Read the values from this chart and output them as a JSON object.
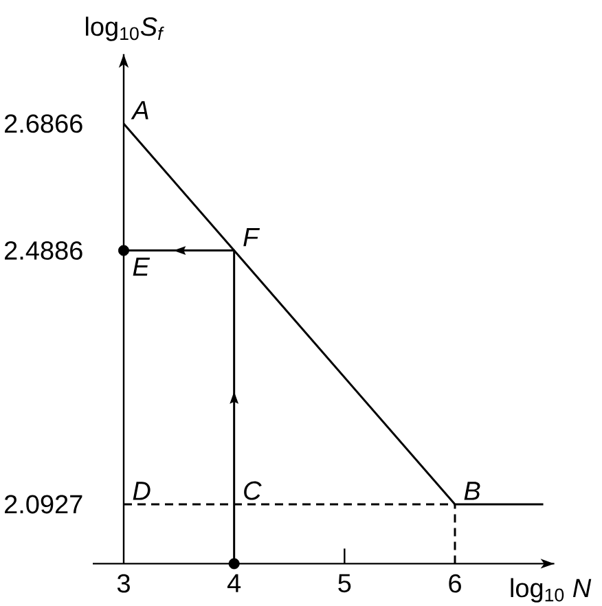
{
  "chart_data": {
    "type": "line",
    "xlabel": "log$_{10}$ *N*",
    "ylabel": "log$_{10}$*S$_{f}$*",
    "x": [
      3,
      4,
      6,
      6.8
    ],
    "xlim": [
      3,
      6.9
    ],
    "ylim": [
      2.0,
      2.795
    ],
    "xticks": [
      3,
      4,
      5,
      6
    ],
    "yticks": [
      2.0927,
      2.4886,
      2.6866
    ],
    "series": [
      {
        "color": "#000000",
        "values": [
          2.6866,
          2.4886,
          2.0927,
          2.0927
        ]
      },
      {
        "color": "#000000",
        "x": [
          3,
          6
        ],
        "values": [
          2.0927,
          2.0927
        ],
        "line_style": "dashed"
      },
      {
        "color": "#000000",
        "x": [
          6,
          6
        ],
        "values": [
          2.0,
          2.0927
        ],
        "line_style": "dashed"
      },
      {
        "color": "#000000",
        "x": [
          4,
          4,
          3
        ],
        "values": [
          2.0,
          2.4886,
          2.4886
        ]
      },
      {
        "type": "scatter",
        "color": "#000000",
        "x": [
          4,
          3
        ],
        "values": [
          2.0,
          2.4886
        ],
        "marker": "circle"
      }
    ],
    "annotations": [
      {
        "text": "A",
        "x": 3,
        "y": 2.6866
      },
      {
        "text": "F",
        "x": 4,
        "y": 2.4886
      },
      {
        "text": "E",
        "x": 3,
        "y": 2.4886
      },
      {
        "text": "D",
        "x": 3,
        "y": 2.0927
      },
      {
        "text": "C",
        "x": 4,
        "y": 2.0927
      },
      {
        "text": "B",
        "x": 6,
        "y": 2.0927
      }
    ]
  }
}
